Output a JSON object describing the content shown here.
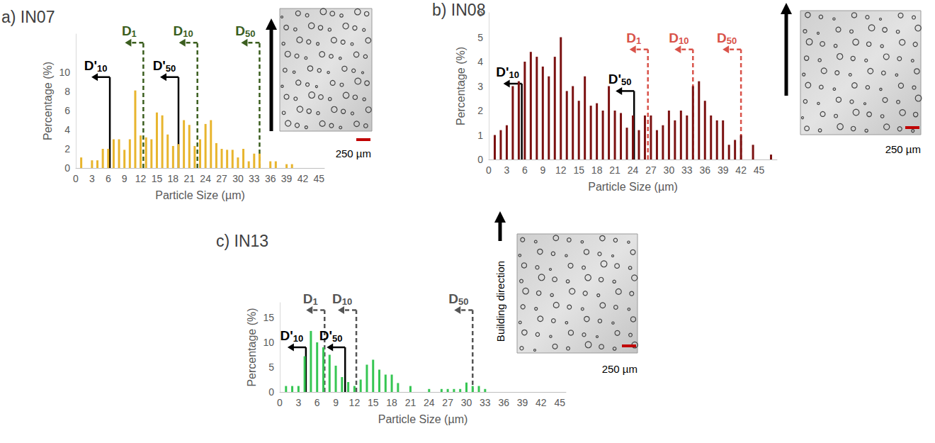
{
  "chart_data": [
    {
      "type": "bar",
      "title": "a) IN07",
      "color": "#e8b52e",
      "xlabel": "Particle Size (µm)",
      "ylabel": "Percentage (%)",
      "x": [
        1,
        3,
        4,
        5,
        6,
        7,
        8,
        9,
        10,
        11,
        12,
        13,
        14,
        15,
        16,
        17,
        18,
        19,
        20,
        21,
        22,
        23,
        24,
        25,
        26,
        27,
        28,
        29,
        30,
        31,
        32,
        33,
        34,
        36,
        37,
        39,
        40
      ],
      "values": [
        1.1,
        0.8,
        0.8,
        2.0,
        2.0,
        3.0,
        3.0,
        1.9,
        3.0,
        8.1,
        3.4,
        3.2,
        3.0,
        5.8,
        5.5,
        3.5,
        2.3,
        2.5,
        5.0,
        4.5,
        2.3,
        3.0,
        4.6,
        5.0,
        2.6,
        2.0,
        1.9,
        1.9,
        1.1,
        2.0,
        0.7,
        1.5,
        1.5,
        0.7,
        0.7,
        0.4,
        0.4
      ],
      "xlim": [
        0,
        46
      ],
      "xticks": [
        0,
        3,
        6,
        9,
        12,
        15,
        18,
        21,
        24,
        27,
        30,
        33,
        36,
        39,
        42,
        45
      ],
      "ylim": [
        0,
        14
      ],
      "yticks": [
        0,
        2,
        4,
        6,
        8,
        10
      ],
      "grid": false,
      "annotations": [
        {
          "label": "D'10",
          "x": 6.3,
          "y": 9.5,
          "color": "#000000",
          "line_style": "solid"
        },
        {
          "label": "D1",
          "x": 12.5,
          "y": 13.1,
          "color": "#3b5e1f",
          "line_style": "dashed"
        },
        {
          "label": "D'50",
          "x": 19,
          "y": 9.5,
          "color": "#000000",
          "line_style": "solid"
        },
        {
          "label": "D10",
          "x": 22.5,
          "y": 13.1,
          "color": "#3b5e1f",
          "line_style": "dashed"
        },
        {
          "label": "D50",
          "x": 34,
          "y": 13.1,
          "color": "#3b5e1f",
          "line_style": "dashed"
        }
      ],
      "micrograph": {
        "scale_bar": "250 µm"
      }
    },
    {
      "type": "bar",
      "title": "b) IN08",
      "color": "#7b1111",
      "xlabel": "Particle Size (µm)",
      "ylabel": "Percentage (%)",
      "x": [
        1,
        2,
        3,
        4,
        5,
        6,
        7,
        8,
        9,
        10,
        11,
        12,
        13,
        14,
        15,
        16,
        17,
        18,
        19,
        20,
        21,
        22,
        23,
        24,
        25,
        26,
        27,
        28,
        29,
        30,
        31,
        32,
        33,
        34,
        35,
        36,
        37,
        38,
        39,
        40,
        41,
        42,
        44,
        47
      ],
      "values": [
        1.0,
        1.2,
        1.4,
        3.0,
        3.2,
        4.0,
        4.4,
        4.2,
        3.8,
        3.4,
        4.2,
        5.0,
        2.8,
        3.0,
        2.4,
        3.4,
        2.2,
        2.3,
        2.0,
        3.0,
        2.0,
        1.9,
        1.3,
        1.8,
        1.2,
        1.8,
        1.8,
        1.2,
        1.4,
        2.0,
        1.6,
        2.0,
        1.8,
        3.0,
        3.2,
        2.4,
        1.8,
        1.6,
        1.6,
        0.6,
        0.8,
        1.0,
        0.6,
        0.2
      ],
      "xlim": [
        0,
        48
      ],
      "xticks": [
        0,
        3,
        6,
        9,
        12,
        15,
        18,
        21,
        24,
        27,
        30,
        33,
        36,
        39,
        42,
        45
      ],
      "ylim": [
        0,
        6
      ],
      "yticks": [
        0,
        1,
        2,
        3,
        4,
        5,
        6
      ],
      "grid": false,
      "annotations": [
        {
          "label": "D'10",
          "x": 5.5,
          "y": 3.1,
          "color": "#000000",
          "line_style": "solid"
        },
        {
          "label": "D'50",
          "x": 24.2,
          "y": 2.8,
          "color": "#000000",
          "line_style": "solid"
        },
        {
          "label": "D1",
          "x": 26.5,
          "y": 4.5,
          "color": "#d9534a",
          "line_style": "dashed"
        },
        {
          "label": "D10",
          "x": 34,
          "y": 4.5,
          "color": "#d9534a",
          "line_style": "dashed"
        },
        {
          "label": "D50",
          "x": 42,
          "y": 4.5,
          "color": "#d9534a",
          "line_style": "dashed"
        }
      ],
      "micrograph": {
        "scale_bar": "250 µm"
      }
    },
    {
      "type": "bar",
      "title": "c) IN13",
      "color": "#36c653",
      "xlabel": "Particle Size (µm)",
      "ylabel": "Percentage (%)",
      "x": [
        1,
        2,
        3,
        4,
        5,
        6,
        7,
        8,
        9,
        10,
        11,
        12,
        13,
        14,
        15,
        16,
        17,
        18,
        19,
        21,
        24,
        26,
        27,
        28,
        29,
        30,
        31,
        32,
        33
      ],
      "values": [
        1.2,
        1.2,
        1.2,
        7.2,
        12.3,
        10.0,
        9.0,
        7.5,
        5.3,
        3.0,
        2.0,
        1.2,
        2.5,
        5.5,
        6.5,
        4.5,
        3.5,
        3.5,
        1.8,
        1.2,
        0.6,
        0.6,
        0.6,
        0.6,
        0.6,
        1.9,
        1.2,
        1.2,
        0.6
      ],
      "xlim": [
        0,
        46
      ],
      "xticks": [
        0,
        3,
        6,
        9,
        12,
        15,
        18,
        21,
        24,
        27,
        30,
        33,
        36,
        39,
        42,
        45
      ],
      "ylim": [
        0,
        18
      ],
      "yticks": [
        0,
        5,
        10,
        15
      ],
      "grid": false,
      "annotations": [
        {
          "label": "D'10",
          "x": 4.2,
          "y": 9,
          "color": "#000000",
          "line_style": "solid"
        },
        {
          "label": "D1",
          "x": 7.2,
          "y": 16.5,
          "color": "#555555",
          "line_style": "dashed"
        },
        {
          "label": "D'50",
          "x": 10.5,
          "y": 9,
          "color": "#000000",
          "line_style": "solid"
        },
        {
          "label": "D10",
          "x": 12.3,
          "y": 16.5,
          "color": "#555555",
          "line_style": "dashed"
        },
        {
          "label": "D50",
          "x": 31,
          "y": 16.5,
          "color": "#555555",
          "line_style": "dashed"
        }
      ],
      "micrograph": {
        "scale_bar": "250 µm",
        "direction_label": "Building direction"
      }
    }
  ]
}
